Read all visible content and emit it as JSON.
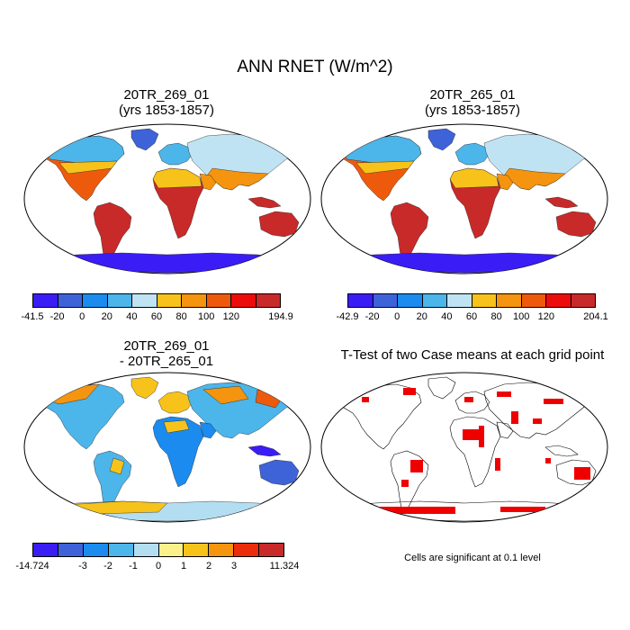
{
  "title": "ANN RNET (W/m^2)",
  "panels": [
    {
      "id": "top-left",
      "title_line1": "20TR_269_01",
      "title_line2": "(yrs 1853-1857)",
      "colorbar": {
        "colors": [
          "#3a1df5",
          "#3e62d8",
          "#1b8bef",
          "#4cb5ea",
          "#bfe3f3",
          "#f7c31b",
          "#f5940e",
          "#ee5a0c",
          "#ec0c0c",
          "#c82a2a"
        ],
        "labels": [
          "-41.5",
          "-20",
          "0",
          "20",
          "40",
          "60",
          "80",
          "100",
          "120",
          "194.9"
        ]
      }
    },
    {
      "id": "top-right",
      "title_line1": "20TR_265_01",
      "title_line2": "(yrs 1853-1857)",
      "colorbar": {
        "colors": [
          "#3a1df5",
          "#3e62d8",
          "#1b8bef",
          "#4cb5ea",
          "#bfe3f3",
          "#f7c31b",
          "#f5940e",
          "#ee5a0c",
          "#ec0c0c",
          "#c82a2a"
        ],
        "labels": [
          "-42.9",
          "-20",
          "0",
          "20",
          "40",
          "60",
          "80",
          "100",
          "120",
          "204.1"
        ]
      }
    },
    {
      "id": "bottom-left",
      "title_line1": "20TR_269_01",
      "title_line2": "- 20TR_265_01",
      "colorbar": {
        "colors": [
          "#3a1df5",
          "#3e62d8",
          "#1b8bef",
          "#4cb5ea",
          "#b3def2",
          "#fbf08a",
          "#f7c31b",
          "#f5940e",
          "#ec2d0c",
          "#c82a2a"
        ],
        "labels": [
          "-14.724",
          "-3",
          "-2",
          "-1",
          "0",
          "1",
          "2",
          "3",
          "11.324"
        ]
      }
    },
    {
      "id": "bottom-right",
      "title_line1": "T-Test of two Case means at each grid point",
      "significance_color": "#ee0000",
      "note": "Cells are significant at 0.1 level"
    }
  ]
}
